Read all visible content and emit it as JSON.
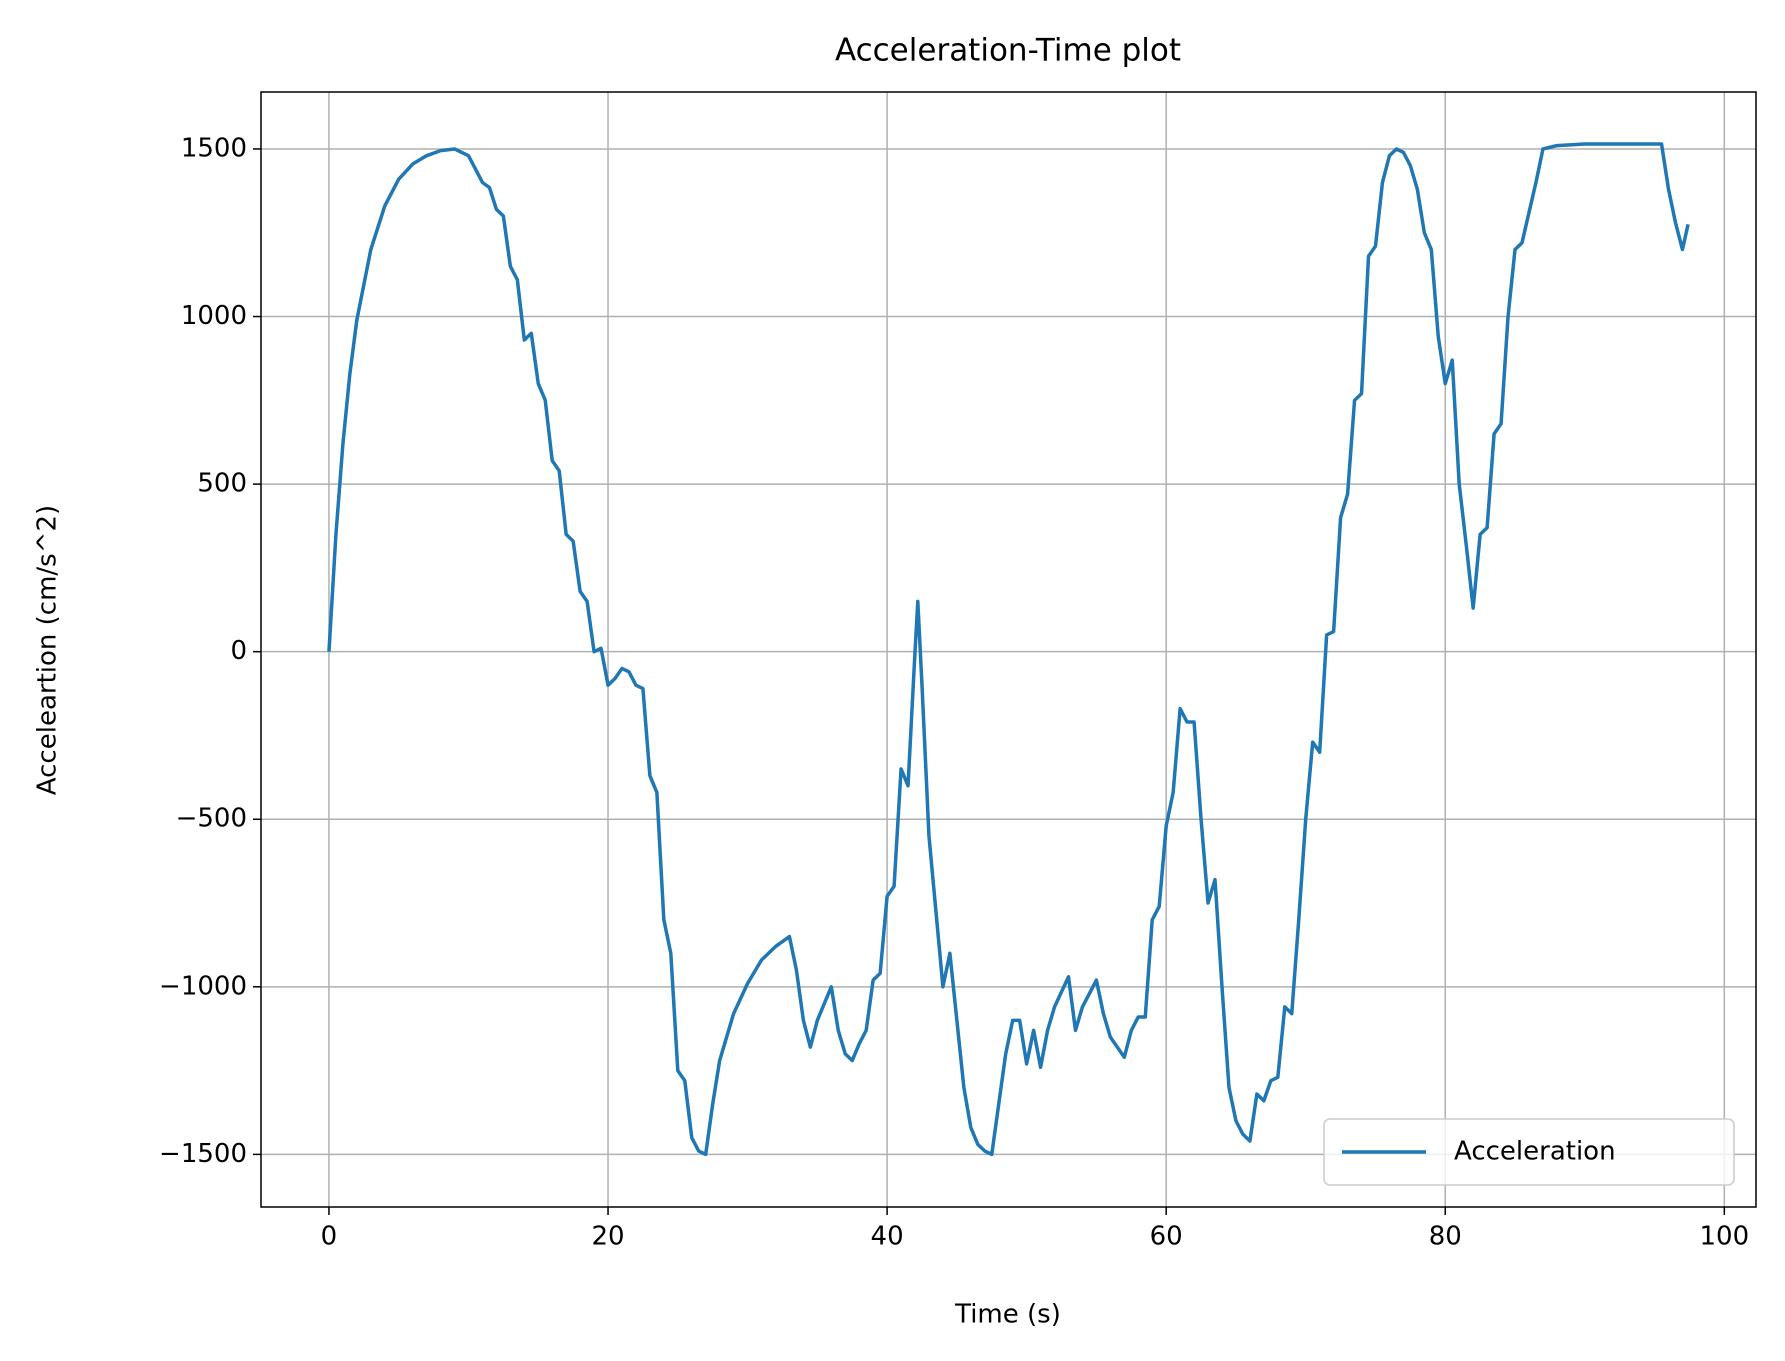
{
  "chart_data": {
    "type": "line",
    "title": "Acceleration-Time plot",
    "x_label": "Time (s)",
    "y_label": "Acceleartion (cm/s^2)",
    "x": [
      0,
      0.5,
      1,
      1.5,
      2,
      3,
      4,
      5,
      6,
      7,
      8,
      9,
      10,
      10.5,
      11,
      11.5,
      12,
      12.5,
      13,
      13.5,
      14,
      14.5,
      15,
      15.5,
      16,
      16.5,
      17,
      17.5,
      18,
      18.5,
      19,
      19.5,
      20,
      20.5,
      21,
      21.5,
      22,
      22.5,
      23,
      23.5,
      24,
      24.5,
      25,
      25.5,
      26,
      26.5,
      27,
      27.5,
      28,
      29,
      30,
      31,
      32,
      33,
      33.5,
      34,
      34.5,
      35,
      36,
      36.5,
      37,
      37.5,
      38,
      38.5,
      39,
      39.5,
      40,
      40.5,
      41,
      41.5,
      42,
      42.2,
      42.5,
      43,
      44,
      44.5,
      45,
      45.5,
      46,
      46.5,
      47,
      47.5,
      48,
      48.5,
      49,
      49.5,
      50,
      50.5,
      51,
      51.5,
      52,
      53,
      53.5,
      54,
      55,
      55.5,
      56,
      57,
      57.5,
      58,
      58.5,
      59,
      59.5,
      60,
      60.5,
      61,
      61.5,
      62,
      62.5,
      63,
      63.5,
      64,
      64.5,
      65,
      65.5,
      66,
      66.5,
      67,
      67.5,
      68,
      68.5,
      69,
      69.5,
      70,
      70.5,
      71,
      71.5,
      72,
      72.5,
      73,
      73.5,
      74,
      74.5,
      75,
      75.5,
      76,
      76.5,
      77,
      77.5,
      78,
      78.5,
      79,
      79.5,
      80,
      80.5,
      81,
      81.5,
      82,
      82.5,
      83,
      83.5,
      84,
      84.5,
      85,
      85.5,
      86,
      86.5,
      87,
      88,
      90,
      92,
      95.5,
      96,
      96.5,
      97,
      97.4
    ],
    "series": [
      {
        "name": "Acceleration",
        "color": "#1f77b4",
        "values": [
          0,
          350,
          620,
          830,
          990,
          1200,
          1330,
          1410,
          1455,
          1480,
          1495,
          1500,
          1480,
          1440,
          1400,
          1385,
          1320,
          1300,
          1150,
          1110,
          930,
          950,
          800,
          750,
          570,
          540,
          350,
          330,
          180,
          150,
          0,
          10,
          -100,
          -80,
          -50,
          -60,
          -100,
          -110,
          -370,
          -420,
          -800,
          -900,
          -1250,
          -1280,
          -1450,
          -1490,
          -1500,
          -1350,
          -1220,
          -1080,
          -990,
          -920,
          -880,
          -850,
          -950,
          -1100,
          -1180,
          -1100,
          -1000,
          -1130,
          -1200,
          -1220,
          -1170,
          -1130,
          -980,
          -960,
          -730,
          -700,
          -350,
          -400,
          0,
          150,
          -100,
          -550,
          -1000,
          -900,
          -1100,
          -1300,
          -1420,
          -1470,
          -1490,
          -1500,
          -1350,
          -1200,
          -1100,
          -1100,
          -1230,
          -1130,
          -1240,
          -1130,
          -1060,
          -970,
          -1130,
          -1060,
          -980,
          -1080,
          -1150,
          -1210,
          -1130,
          -1090,
          -1090,
          -800,
          -760,
          -520,
          -420,
          -170,
          -210,
          -210,
          -500,
          -750,
          -680,
          -1000,
          -1300,
          -1400,
          -1440,
          -1460,
          -1320,
          -1340,
          -1280,
          -1270,
          -1060,
          -1080,
          -800,
          -500,
          -270,
          -300,
          50,
          60,
          400,
          470,
          750,
          770,
          1180,
          1210,
          1400,
          1480,
          1500,
          1490,
          1450,
          1380,
          1250,
          1200,
          940,
          800,
          870,
          500,
          320,
          130,
          350,
          370,
          650,
          680,
          1000,
          1200,
          1220,
          1310,
          1400,
          1500,
          1510,
          1515,
          1515,
          1515,
          1380,
          1280,
          1200,
          1275
        ]
      }
    ],
    "xlim": [
      -4.87,
      102.27
    ],
    "xticks": [
      0,
      20,
      40,
      60,
      80,
      100
    ],
    "ylim": [
      -1657,
      1670
    ],
    "yticks": [
      {
        "value": -1500,
        "label": "−1500"
      },
      {
        "value": -1000,
        "label": "−1000"
      },
      {
        "value": -500,
        "label": "−500"
      },
      0,
      500,
      1000,
      1500
    ],
    "grid": true,
    "legend": "lower right"
  }
}
